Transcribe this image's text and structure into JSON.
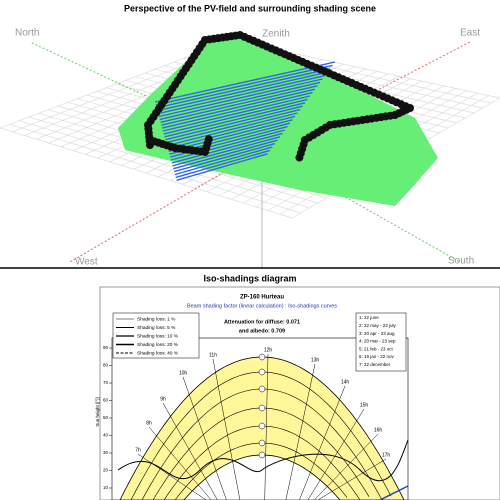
{
  "scene": {
    "title": "Perspective of the PV-field and surrounding shading scene",
    "axes": {
      "north": "North",
      "zenith": "Zenith",
      "east": "East",
      "west": "West",
      "south": "South"
    }
  },
  "diagram": {
    "title": "Iso-shadings diagram",
    "subtitle": "ZP-160  Hurteau",
    "caption": "Beam shading factor (linear calculation) : Iso-shadings curves",
    "legend": [
      "Shading loss: 1 %",
      "Shading loss: 5 %",
      "Shading loss: 10 %",
      "Shading loss: 20 %",
      "Shading loss: 40 %"
    ],
    "attenuation": [
      "Attenuation for diffuse:  0.071",
      "and albedo:  0.709"
    ],
    "dates": [
      "1: 22 june",
      "2: 22 may - 23 july",
      "3: 20 apr - 23 aug",
      "4: 20 mar - 23 sep",
      "5: 21 feb - 23 oct",
      "6: 19 jan - 22 nov",
      "7: 22 december"
    ],
    "hours": [
      "7h",
      "8h",
      "9h",
      "10h",
      "11h",
      "12h",
      "13h",
      "14h",
      "15h",
      "16h",
      "17h"
    ],
    "y_axis_label": "Sun height [[°]]",
    "yticks": [
      90,
      80,
      70,
      60,
      50,
      40,
      30,
      20,
      10
    ]
  }
}
